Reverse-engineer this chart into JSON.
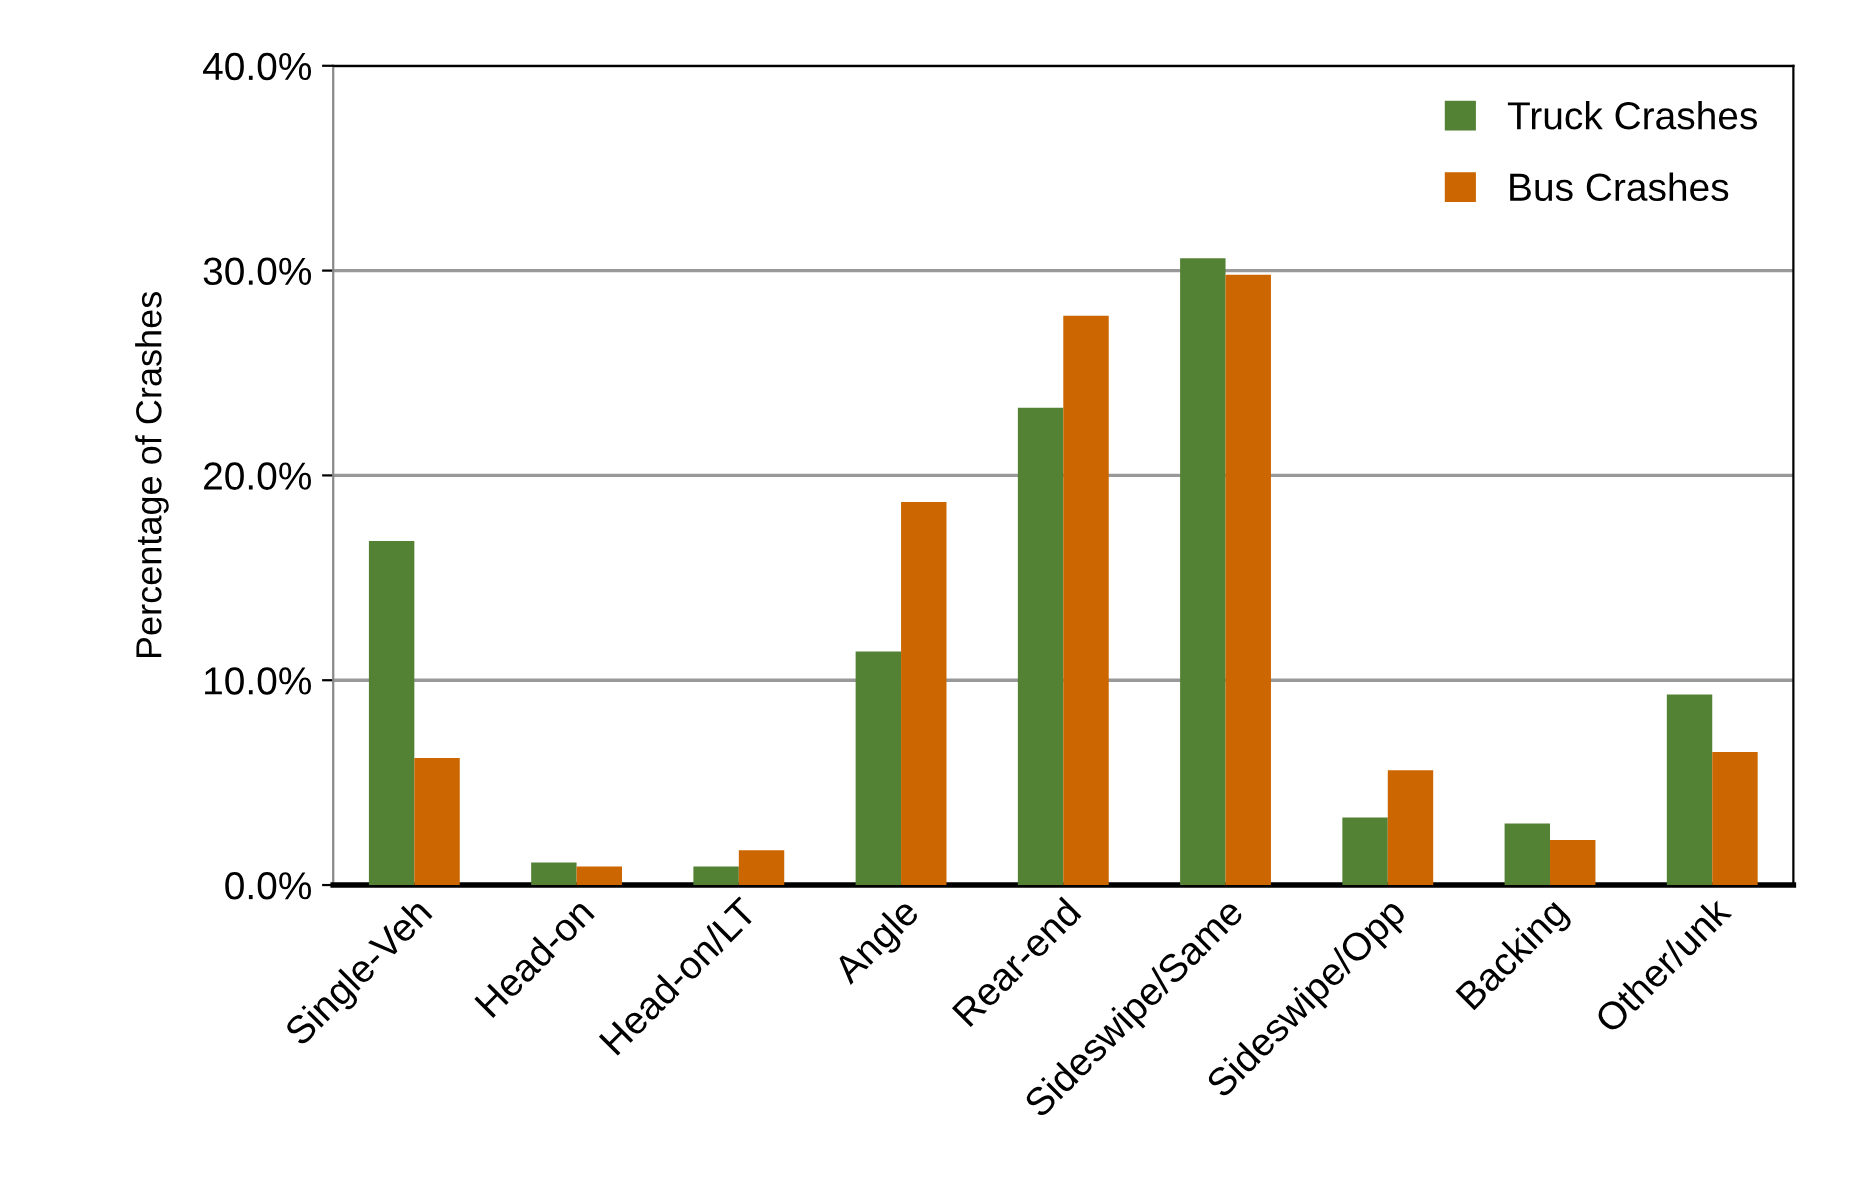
{
  "chart_data": {
    "type": "bar",
    "ylabel": "Percentage of Crashes",
    "categories": [
      "Single-Veh",
      "Head-on",
      "Head-on/LT",
      "Angle",
      "Rear-end",
      "Sideswipe/Same",
      "Sideswipe/Opp",
      "Backing",
      "Other/unk"
    ],
    "series": [
      {
        "name": "Truck Crashes",
        "color": "#548235",
        "values": [
          16.8,
          1.1,
          0.9,
          11.4,
          23.3,
          30.6,
          3.3,
          3.0,
          9.3
        ]
      },
      {
        "name": "Bus Crashes",
        "color": "#cc6600",
        "values": [
          6.2,
          0.9,
          1.7,
          18.7,
          27.8,
          29.8,
          5.6,
          2.2,
          6.5
        ]
      }
    ],
    "ylim": [
      0,
      40
    ],
    "yticks": [
      {
        "value": 0,
        "label": "0.0%"
      },
      {
        "value": 10,
        "label": "10.0%"
      },
      {
        "value": 20,
        "label": "20.0%"
      },
      {
        "value": 30,
        "label": "30.0%"
      },
      {
        "value": 40,
        "label": "40.0%"
      }
    ],
    "grid": "y",
    "legend": "top right"
  }
}
